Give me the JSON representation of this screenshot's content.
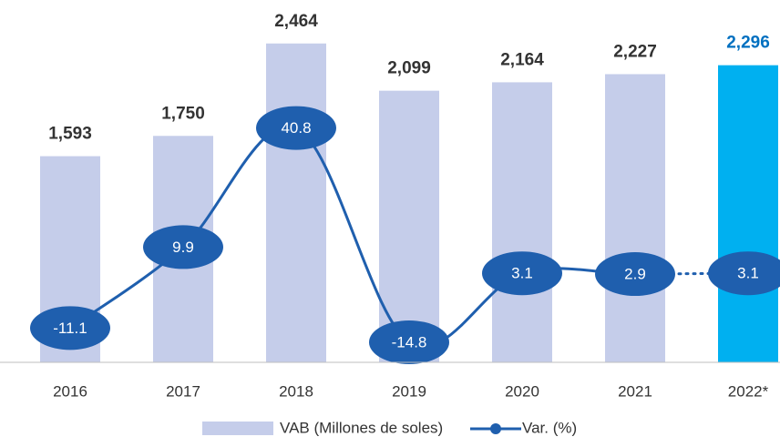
{
  "chart_data": {
    "type": "combo",
    "categories": [
      "2016",
      "2017",
      "2018",
      "2019",
      "2020",
      "2021",
      "2022*"
    ],
    "ylim": [
      0,
      2800
    ],
    "y2lim": [
      -20,
      74
    ],
    "series": [
      {
        "name": "VAB (Millones de soles)",
        "type": "bar",
        "color": "#c5cdea",
        "highlight_color": "#00b0f0",
        "label_color": "#333333",
        "highlight_label_color": "#0070c0",
        "highlight": [
          false,
          false,
          false,
          false,
          false,
          false,
          true
        ],
        "values": [
          1593,
          1750,
          2464,
          2099,
          2164,
          2227,
          2296
        ],
        "value_labels": [
          "1,593",
          "1,750",
          "2,464",
          "2,099",
          "2,164",
          "2,227",
          "2,296"
        ]
      },
      {
        "name": "Var. (%)",
        "type": "line",
        "axis": "y2",
        "color": "#1f5fae",
        "dotted": [
          false,
          false,
          false,
          false,
          false,
          false,
          true
        ],
        "values": [
          -11.1,
          9.9,
          40.8,
          -14.8,
          3.1,
          2.9,
          3.1
        ]
      }
    ]
  }
}
